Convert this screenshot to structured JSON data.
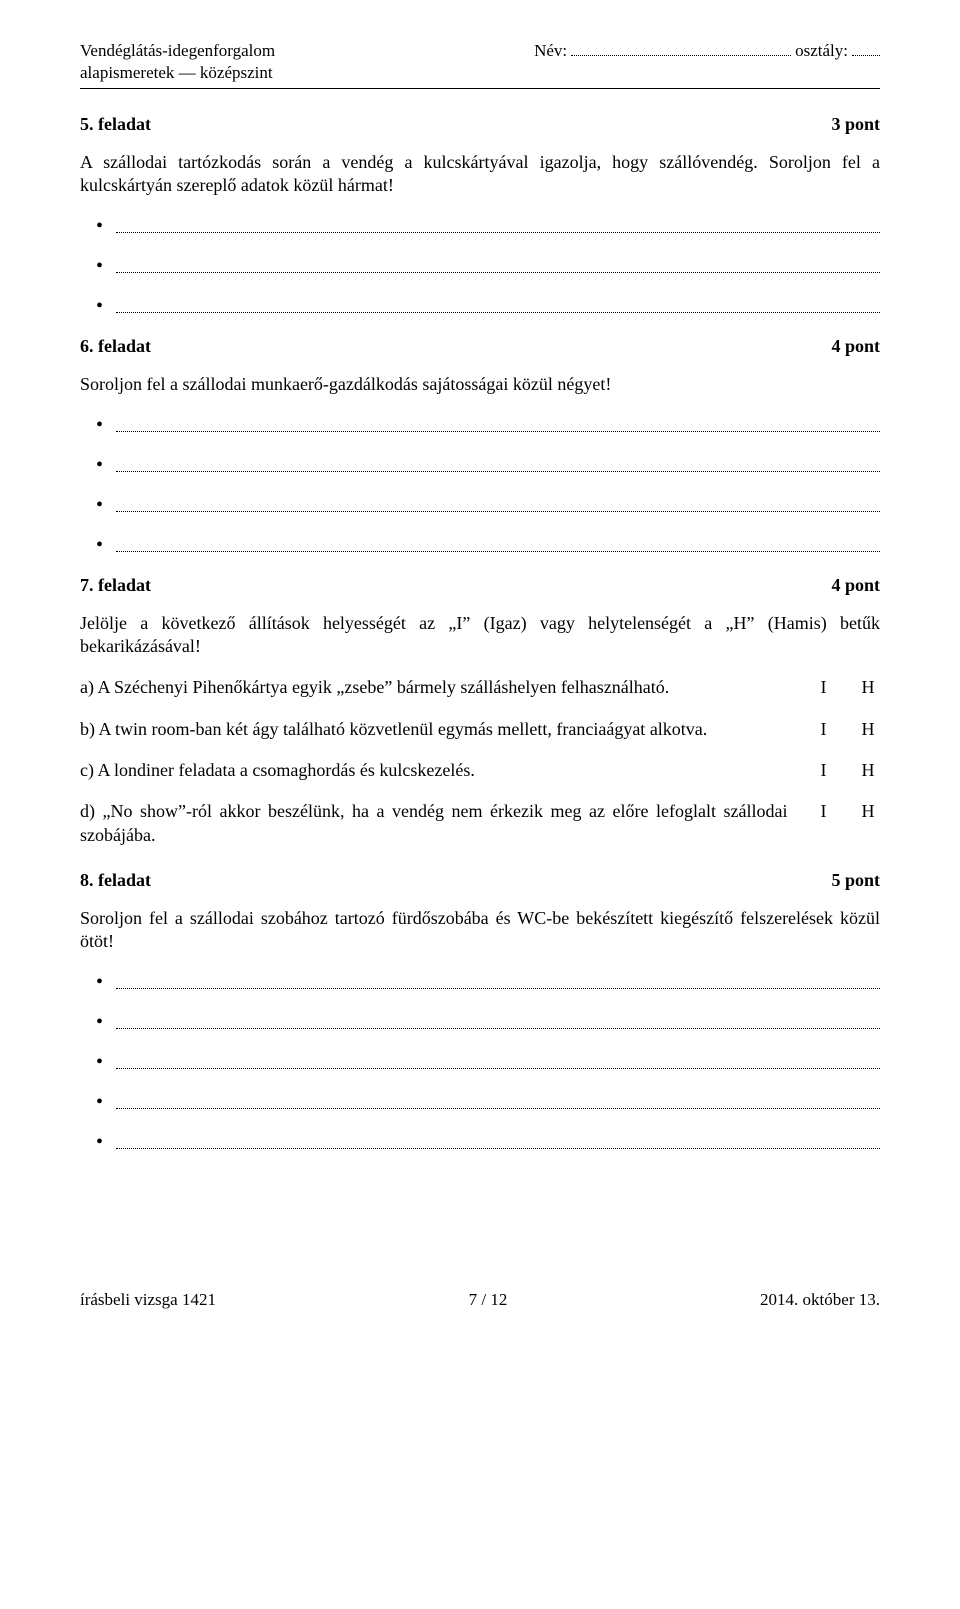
{
  "header": {
    "subject_line1": "Vendéglátás-idegenforgalom",
    "subject_line2": "alapismeretek — középszint",
    "name_label": "Név:",
    "class_label": "osztály:"
  },
  "tasks": {
    "t5": {
      "title": "5. feladat",
      "points": "3 pont",
      "body": "A szállodai tartózkodás során a vendég a kulcskártyával igazolja, hogy szállóvendég. Soroljon fel a kulcskártyán szereplő adatok közül hármat!",
      "bullets": 3
    },
    "t6": {
      "title": "6. feladat",
      "points": "4 pont",
      "body": "Soroljon fel a szállodai munkaerő-gazdálkodás sajátosságai közül négyet!",
      "bullets": 4
    },
    "t7": {
      "title": "7. feladat",
      "points": "4 pont",
      "body": "Jelölje a következő állítások helyességét az „I” (Igaz) vagy helytelenségét a „H” (Hamis) betűk bekarikázásával!",
      "items": {
        "a": "a) A Széchenyi Pihenőkártya egyik „zsebe” bármely szálláshelyen felhasználható.",
        "b": "b) A twin room-ban két ágy található közvetlenül egymás mellett, franciaágyat alkotva.",
        "c": "c) A londiner feladata a csomaghordás és kulcskezelés.",
        "d": "d) „No show”-ról akkor beszélünk, ha a vendég nem érkezik meg az előre lefoglalt szállodai szobájába."
      },
      "true_label": "I",
      "false_label": "H"
    },
    "t8": {
      "title": "8. feladat",
      "points": "5 pont",
      "body": "Soroljon fel a szállodai szobához tartozó fürdőszobába és WC-be bekészített kiegészítő felszerelések közül ötöt!",
      "bullets": 5
    }
  },
  "footer": {
    "left": "írásbeli vizsga 1421",
    "center": "7 / 12",
    "right": "2014. október 13."
  }
}
